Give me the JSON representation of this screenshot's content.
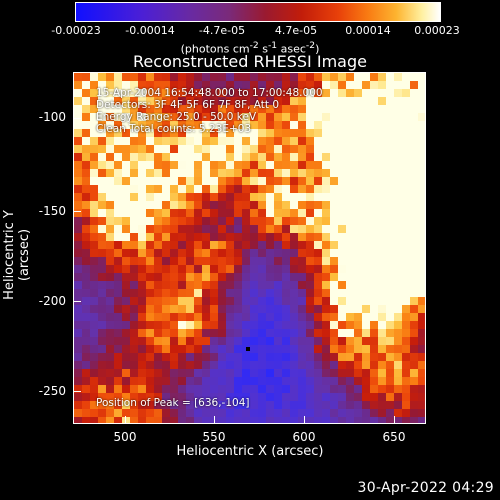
{
  "colorbar": {
    "ticks": [
      "-0.00023",
      "-0.00014",
      "-4.7e-05",
      "4.7e-05",
      "0.00014",
      "0.00023"
    ],
    "units_html": "(photons cm<sup>-2</sup> s<sup>-1</sup> asec<sup>-2</sup>)"
  },
  "title": "Reconstructed RHESSI Image",
  "info": {
    "time_range": "15-Apr-2004 16:54:48.000 to 17:00:48.000",
    "detectors": "Detectors: 3F 4F 5F 6F 7F 8F, Att 0",
    "energy": "Energy Range: 25.0 - 50.0 keV",
    "method": "Clean     Total counts: 5.23E+03",
    "peak": "Position of Peak = [636,-104]"
  },
  "axes": {
    "xlabel": "Heliocentric X (arcsec)",
    "ylabel": "Heliocentric Y (arcsec)",
    "x_ticks": [
      "500",
      "550",
      "600",
      "650"
    ],
    "y_ticks": [
      "-100",
      "-150",
      "-200",
      "-250"
    ],
    "xlim": [
      471,
      667
    ],
    "ylim": [
      -271,
      -76
    ]
  },
  "timestamp": "30-Apr-2022 04:29"
}
